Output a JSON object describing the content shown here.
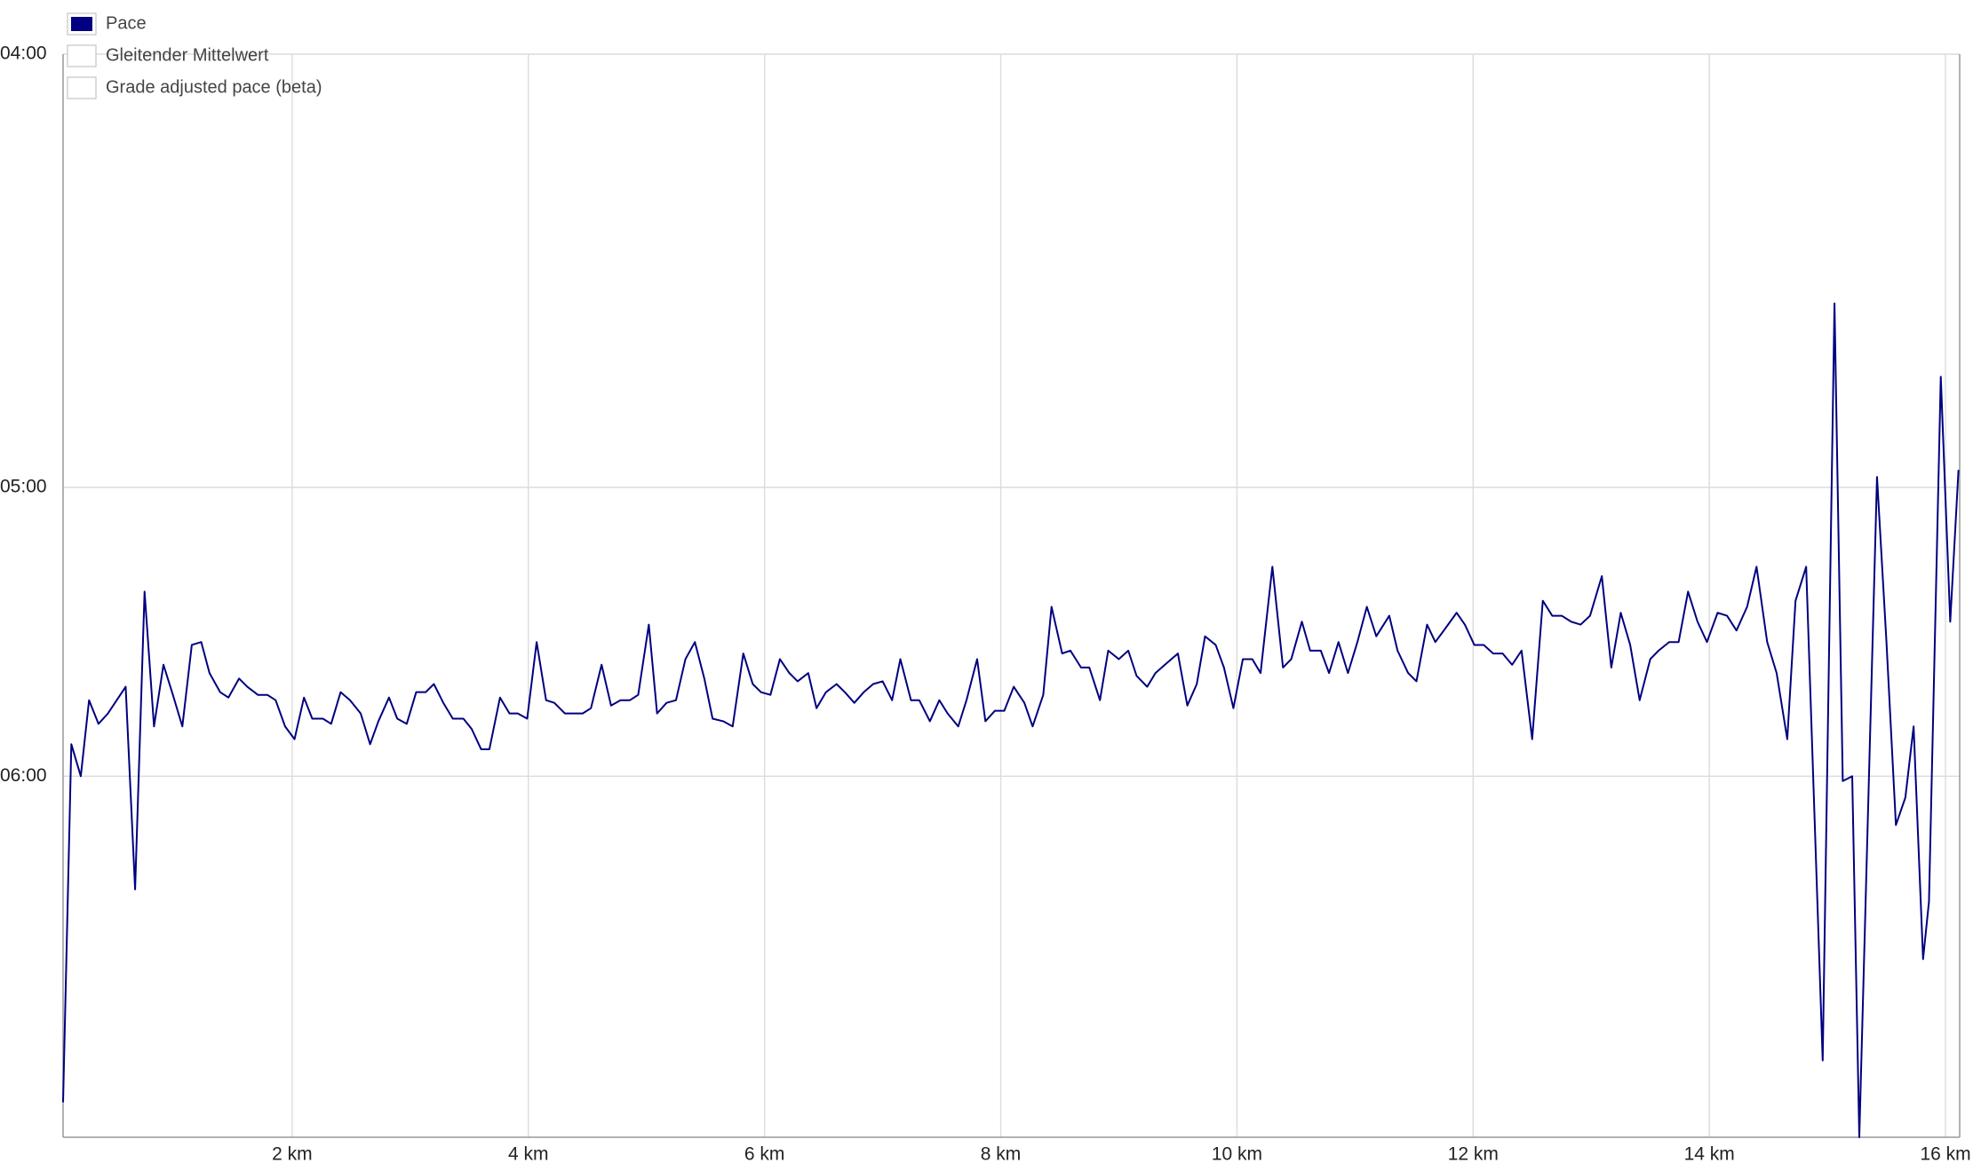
{
  "chart_data": {
    "type": "line",
    "x": [
      0.06,
      0.13,
      0.21,
      0.28,
      0.36,
      0.44,
      0.59,
      0.67,
      0.75,
      0.83,
      0.91,
      0.99,
      1.07,
      1.15,
      1.23,
      1.3,
      1.39,
      1.46,
      1.55,
      1.62,
      1.71,
      1.79,
      1.86,
      1.94,
      2.02,
      2.1,
      2.17,
      2.26,
      2.33,
      2.41,
      2.49,
      2.58,
      2.66,
      2.73,
      2.82,
      2.89,
      2.97,
      3.05,
      3.13,
      3.2,
      3.28,
      3.36,
      3.45,
      3.52,
      3.6,
      3.67,
      3.76,
      3.84,
      3.91,
      3.99,
      4.07,
      4.15,
      4.22,
      4.31,
      4.38,
      4.46,
      4.53,
      4.62,
      4.7,
      4.78,
      4.86,
      4.93,
      5.02,
      5.09,
      5.17,
      5.25,
      5.33,
      5.41,
      5.49,
      5.56,
      5.65,
      5.73,
      5.82,
      5.9,
      5.97,
      6.05,
      6.13,
      6.21,
      6.28,
      6.37,
      6.44,
      6.52,
      6.61,
      6.68,
      6.76,
      6.84,
      6.92,
      7.0,
      7.08,
      7.15,
      7.24,
      7.31,
      7.4,
      7.48,
      7.55,
      7.64,
      7.71,
      7.8,
      7.87,
      7.95,
      8.03,
      8.11,
      8.2,
      8.27,
      8.36,
      8.43,
      8.52,
      8.59,
      8.68,
      8.75,
      8.84,
      8.91,
      9.0,
      9.08,
      9.15,
      9.24,
      9.31,
      9.39,
      9.5,
      9.58,
      9.66,
      9.73,
      9.82,
      9.89,
      9.97,
      10.05,
      10.13,
      10.2,
      10.3,
      10.39,
      10.46,
      10.55,
      10.62,
      10.71,
      10.78,
      10.86,
      10.94,
      11.02,
      11.1,
      11.18,
      11.29,
      11.36,
      11.45,
      11.52,
      11.61,
      11.68,
      11.77,
      11.86,
      11.93,
      12.01,
      12.09,
      12.17,
      12.25,
      12.33,
      12.41,
      12.5,
      12.59,
      12.67,
      12.75,
      12.83,
      12.91,
      12.99,
      13.09,
      13.17,
      13.25,
      13.33,
      13.41,
      13.5,
      13.57,
      13.66,
      13.74,
      13.82,
      13.9,
      13.98,
      14.07,
      14.15,
      14.23,
      14.32,
      14.4,
      14.49,
      14.57,
      14.66,
      14.73,
      14.82,
      14.96,
      15.06,
      15.13,
      15.21,
      15.27,
      15.42,
      15.5,
      15.58,
      15.66,
      15.73,
      15.81,
      15.86,
      15.96,
      16.04,
      16.11
    ],
    "series": [
      {
        "name": "Pace",
        "color": "#000080",
        "values": [
          7.75,
          5.87,
          6.0,
          5.7,
          5.79,
          5.75,
          5.65,
          6.51,
          5.32,
          5.8,
          5.57,
          5.68,
          5.8,
          5.5,
          5.49,
          5.6,
          5.67,
          5.69,
          5.62,
          5.65,
          5.68,
          5.68,
          5.7,
          5.8,
          5.85,
          5.69,
          5.77,
          5.77,
          5.79,
          5.67,
          5.7,
          5.75,
          5.87,
          5.78,
          5.69,
          5.77,
          5.79,
          5.67,
          5.67,
          5.64,
          5.71,
          5.77,
          5.77,
          5.81,
          5.89,
          5.89,
          5.69,
          5.75,
          5.75,
          5.77,
          5.49,
          5.7,
          5.71,
          5.75,
          5.75,
          5.75,
          5.73,
          5.57,
          5.72,
          5.7,
          5.7,
          5.68,
          5.43,
          5.75,
          5.71,
          5.7,
          5.55,
          5.49,
          5.62,
          5.77,
          5.78,
          5.8,
          5.53,
          5.64,
          5.67,
          5.68,
          5.55,
          5.6,
          5.63,
          5.6,
          5.73,
          5.67,
          5.64,
          5.67,
          5.71,
          5.67,
          5.64,
          5.63,
          5.7,
          5.55,
          5.7,
          5.7,
          5.78,
          5.7,
          5.75,
          5.8,
          5.7,
          5.55,
          5.78,
          5.74,
          5.74,
          5.65,
          5.71,
          5.8,
          5.68,
          5.37,
          5.53,
          5.52,
          5.58,
          5.58,
          5.7,
          5.52,
          5.55,
          5.52,
          5.61,
          5.65,
          5.6,
          5.57,
          5.53,
          5.72,
          5.64,
          5.47,
          5.5,
          5.58,
          5.73,
          5.55,
          5.55,
          5.6,
          5.24,
          5.58,
          5.55,
          5.42,
          5.52,
          5.52,
          5.6,
          5.49,
          5.6,
          5.49,
          5.37,
          5.47,
          5.4,
          5.52,
          5.6,
          5.63,
          5.43,
          5.49,
          5.44,
          5.39,
          5.43,
          5.5,
          5.5,
          5.53,
          5.53,
          5.57,
          5.52,
          5.85,
          5.35,
          5.4,
          5.4,
          5.42,
          5.43,
          5.4,
          5.27,
          5.58,
          5.39,
          5.5,
          5.7,
          5.55,
          5.52,
          5.49,
          5.49,
          5.32,
          5.42,
          5.49,
          5.39,
          5.4,
          5.45,
          5.37,
          5.24,
          5.49,
          5.6,
          5.85,
          5.35,
          5.24,
          7.47,
          4.52,
          6.02,
          6.0,
          8.0,
          4.97,
          5.49,
          6.21,
          6.09,
          5.8,
          6.87,
          6.57,
          4.7,
          5.42,
          4.95
        ]
      }
    ],
    "inactive_series": [
      {
        "name": "Gleitender Mittelwert"
      },
      {
        "name": "Grade adjusted pace (beta)"
      }
    ],
    "xlim": [
      0.06,
      16.12
    ],
    "xticks": [
      {
        "value": 2,
        "label": "2 km"
      },
      {
        "value": 4,
        "label": "4 km"
      },
      {
        "value": 6,
        "label": "6 km"
      },
      {
        "value": 8,
        "label": "8 km"
      },
      {
        "value": 10,
        "label": "10 km"
      },
      {
        "value": 12,
        "label": "12 km"
      },
      {
        "value": 14,
        "label": "14 km"
      },
      {
        "value": 16,
        "label": "16 km"
      }
    ],
    "ylim": [
      4,
      8
    ],
    "yscale": "reciprocal",
    "yticks": [
      {
        "value": 4,
        "label": "04:00"
      },
      {
        "value": 5,
        "label": "05:00"
      },
      {
        "value": 6,
        "label": "06:00"
      }
    ],
    "grid": true
  }
}
